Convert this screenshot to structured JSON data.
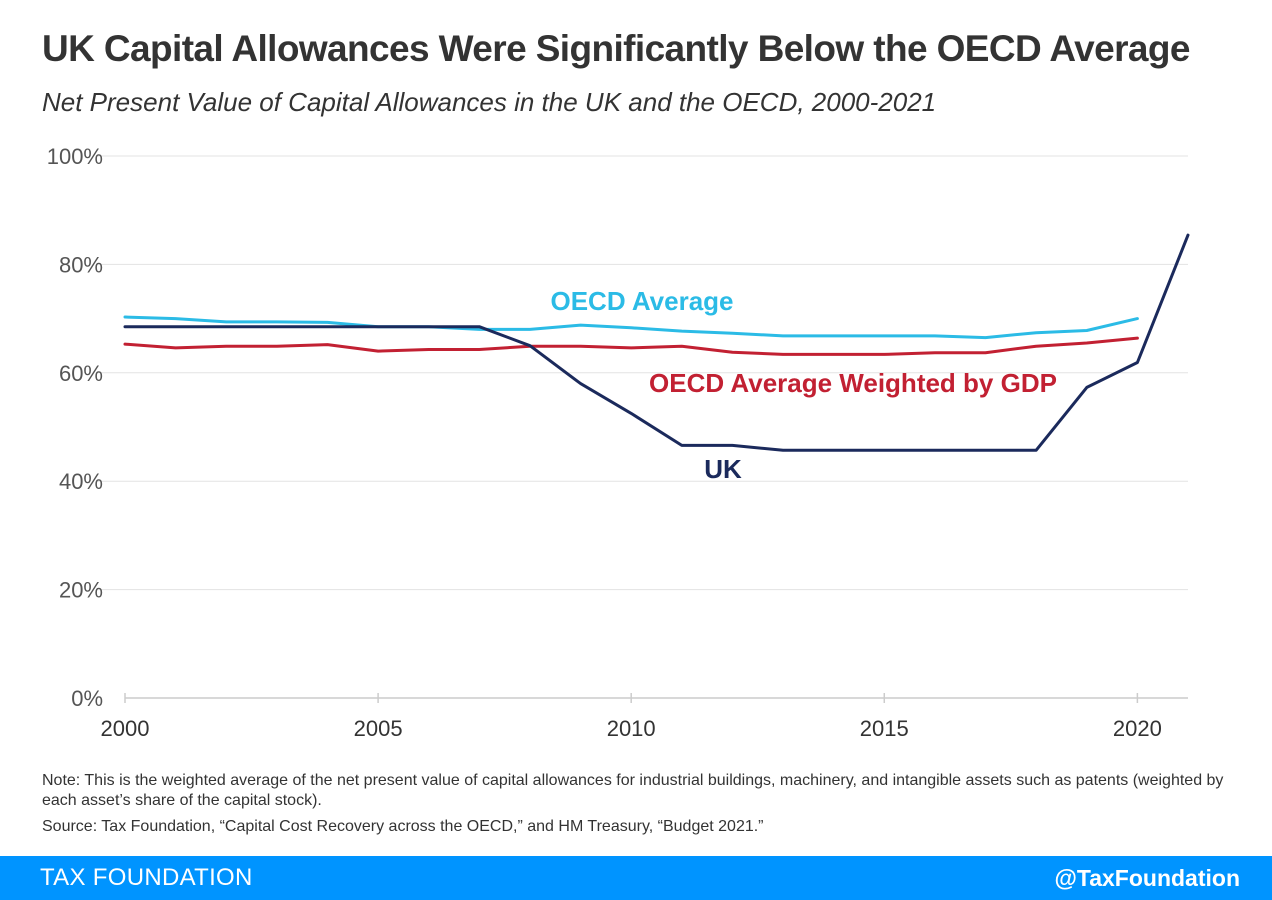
{
  "header": {
    "title": "UK Capital Allowances Were Significantly Below the OECD Average",
    "subtitle": "Net Present Value of Capital Allowances in the UK and the OECD, 2000-2021"
  },
  "chart_data": {
    "type": "line",
    "title": "UK Capital Allowances Were Significantly Below the OECD Average",
    "subtitle": "Net Present Value of Capital Allowances in the UK and the OECD, 2000-2021",
    "xlabel": "",
    "ylabel": "",
    "xlim": [
      2000,
      2021
    ],
    "ylim": [
      0,
      100
    ],
    "x_ticks": [
      2000,
      2005,
      2010,
      2015,
      2020
    ],
    "y_ticks": [
      0,
      20,
      40,
      60,
      80,
      100
    ],
    "y_tick_labels": [
      "0%",
      "20%",
      "40%",
      "60%",
      "80%",
      "100%"
    ],
    "grid": "horizontal",
    "legend": "inline labels",
    "x": [
      2000,
      2001,
      2002,
      2003,
      2004,
      2005,
      2006,
      2007,
      2008,
      2009,
      2010,
      2011,
      2012,
      2013,
      2014,
      2015,
      2016,
      2017,
      2018,
      2019,
      2020,
      2021
    ],
    "series": [
      {
        "name": "OECD Average",
        "color": "#2bbbe6",
        "values": [
          70.3,
          70.0,
          69.4,
          69.4,
          69.3,
          68.5,
          68.5,
          68.0,
          68.0,
          68.8,
          68.3,
          67.7,
          67.3,
          66.8,
          66.8,
          66.8,
          66.8,
          66.5,
          67.4,
          67.8,
          70.0,
          null
        ]
      },
      {
        "name": "OECD Average Weighted by GDP",
        "color": "#c22032",
        "values": [
          65.3,
          64.6,
          64.9,
          64.9,
          65.2,
          64.0,
          64.3,
          64.3,
          64.9,
          64.9,
          64.6,
          64.9,
          63.8,
          63.4,
          63.4,
          63.4,
          63.7,
          63.7,
          64.9,
          65.5,
          66.4,
          null
        ]
      },
      {
        "name": "UK",
        "color": "#1b2a5c",
        "values": [
          68.5,
          68.5,
          68.5,
          68.5,
          68.5,
          68.5,
          68.5,
          68.5,
          65.0,
          58.0,
          52.5,
          46.6,
          46.6,
          45.7,
          45.7,
          45.7,
          45.7,
          45.7,
          45.7,
          57.3,
          61.9,
          85.4
        ]
      }
    ]
  },
  "note": {
    "line1": "Note: This is the weighted average of the net present value of capital allowances for industrial buildings, machinery, and intangible assets such as patents (weighted by each asset’s share of the capital stock).",
    "line2": "Source: Tax Foundation, “Capital Cost Recovery across the OECD,” and HM Treasury, “Budget 2021.”"
  },
  "footer": {
    "brand": "TAX FOUNDATION",
    "handle": "@TaxFoundation",
    "color": "#0094ff"
  }
}
